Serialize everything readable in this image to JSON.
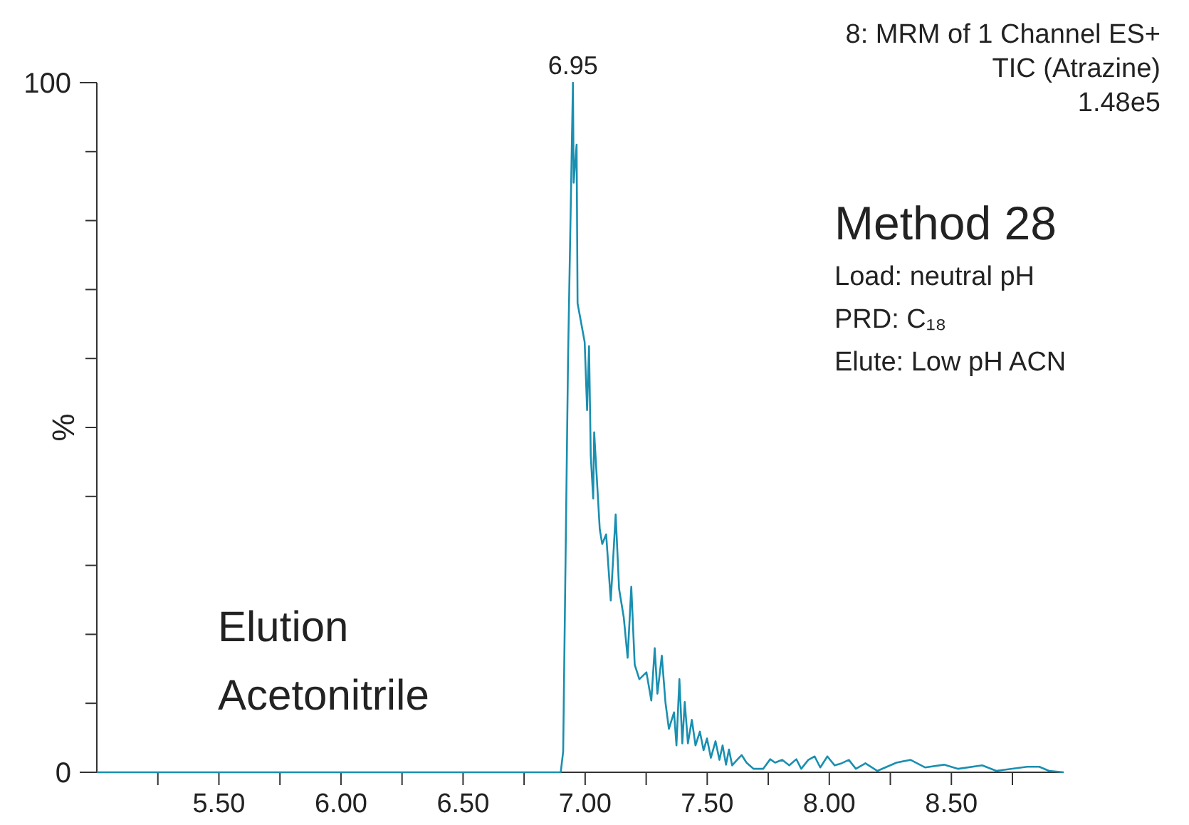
{
  "chart_data": {
    "type": "line",
    "ylabel": "%",
    "annotations": [
      "8: MRM of 1 Channel ES+",
      "TIC (Atrazine)",
      "1.48e5",
      "Method 28",
      "Load: neutral pH",
      "PRD: C₁₈",
      "Elute: Low pH ACN",
      "Elution",
      "Acetonitrile",
      {
        "text": "6.95",
        "x": 6.95,
        "y": 100
      }
    ],
    "xlim": [
      5.0,
      8.96
    ],
    "xticks": [
      {
        "value": 5.25,
        "label": null
      },
      {
        "value": 5.5,
        "label": "5.50"
      },
      {
        "value": 5.75,
        "label": null
      },
      {
        "value": 6.0,
        "label": "6.00"
      },
      {
        "value": 6.25,
        "label": null
      },
      {
        "value": 6.5,
        "label": "6.50"
      },
      {
        "value": 6.75,
        "label": null
      },
      {
        "value": 7.0,
        "label": "7.00"
      },
      {
        "value": 7.25,
        "label": null
      },
      {
        "value": 7.5,
        "label": "7.50"
      },
      {
        "value": 7.75,
        "label": null
      },
      {
        "value": 8.0,
        "label": "8.00"
      },
      {
        "value": 8.25,
        "label": null
      },
      {
        "value": 8.5,
        "label": "8.50"
      },
      {
        "value": 8.75,
        "label": null
      }
    ],
    "ylim": [
      0,
      100
    ],
    "yticks": [
      0,
      {
        "value": 10,
        "label": null
      },
      {
        "value": 20,
        "label": null
      },
      {
        "value": 30,
        "label": null
      },
      {
        "value": 40,
        "label": null
      },
      {
        "value": 50,
        "label": null
      },
      {
        "value": 60,
        "label": null
      },
      {
        "value": 70,
        "label": null
      },
      {
        "value": 80,
        "label": null
      },
      {
        "value": 90,
        "label": null
      },
      100
    ],
    "marker": "none",
    "line_style": "solid",
    "grid": false,
    "series": [
      {
        "color": "#1a8fb0",
        "x": [
          5.0,
          6.9,
          6.91,
          6.93,
          6.95,
          6.953,
          6.965,
          6.969,
          6.998,
          7.008,
          7.016,
          7.023,
          7.033,
          7.037,
          7.06,
          7.07,
          7.086,
          7.105,
          7.125,
          7.139,
          7.158,
          7.174,
          7.189,
          7.203,
          7.222,
          7.251,
          7.271,
          7.285,
          7.296,
          7.314,
          7.329,
          7.343,
          7.364,
          7.374,
          7.386,
          7.398,
          7.408,
          7.421,
          7.437,
          7.452,
          7.47,
          7.485,
          7.499,
          7.515,
          7.534,
          7.55,
          7.563,
          7.577,
          7.589,
          7.602,
          7.622,
          7.641,
          7.661,
          7.69,
          7.729,
          7.758,
          7.778,
          7.807,
          7.836,
          7.865,
          7.885,
          7.914,
          7.94,
          7.963,
          7.992,
          8.022,
          8.05,
          8.08,
          8.109,
          8.148,
          8.197,
          8.275,
          8.333,
          8.392,
          8.47,
          8.528,
          8.626,
          8.684,
          8.81,
          8.86,
          8.9,
          8.96
        ],
        "values": [
          0,
          0,
          3,
          60,
          100,
          85.5,
          91,
          68,
          62.4,
          52.5,
          61.8,
          45.9,
          39.7,
          49.3,
          35.2,
          33.1,
          34.5,
          24.9,
          37.4,
          26.6,
          22.5,
          16.6,
          26.9,
          15.6,
          13.5,
          14.5,
          10.4,
          18.0,
          11.4,
          16.9,
          10.1,
          6.3,
          8.7,
          3.9,
          13.5,
          4.2,
          10.2,
          4.2,
          7.6,
          3.9,
          5.9,
          3.2,
          4.9,
          2.1,
          4.5,
          1.8,
          3.9,
          1.1,
          3.3,
          1.0,
          1.8,
          2.5,
          1.4,
          0.5,
          0.5,
          1.9,
          1.4,
          1.8,
          1.0,
          1.9,
          0.5,
          1.8,
          2.3,
          0.7,
          2.3,
          1.0,
          1.3,
          1.8,
          0.5,
          1.3,
          0.2,
          1.4,
          1.8,
          0.7,
          1.1,
          0.5,
          1.0,
          0.2,
          0.8,
          0.8,
          0.2,
          0
        ]
      }
    ]
  }
}
